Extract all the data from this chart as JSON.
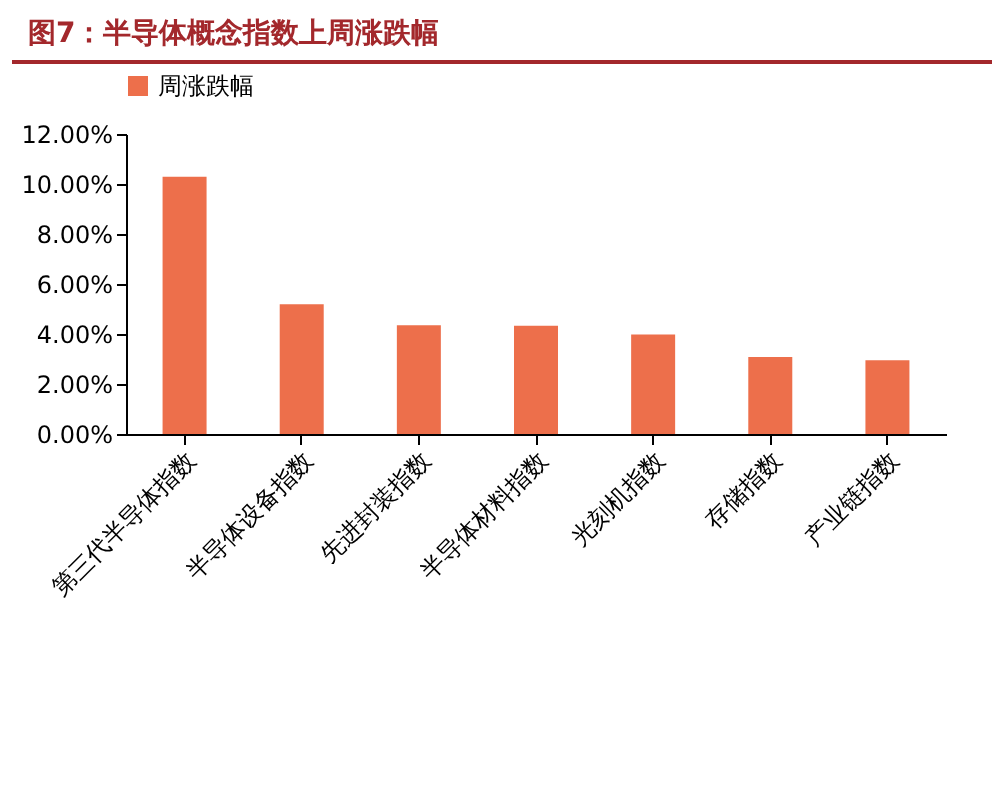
{
  "chart_data": {
    "type": "bar",
    "title": "图7：半导体概念指数上周涨跌幅",
    "categories": [
      "第三代半导体指数",
      "半导体设备指数",
      "先进封装指数",
      "半导体材料指数",
      "光刻机指数",
      "存储指数",
      "产业链指数"
    ],
    "series": [
      {
        "name": "周涨跌幅",
        "color": "#ed6f4b",
        "values": [
          10.29,
          5.19,
          4.35,
          4.33,
          3.98,
          3.08,
          2.95
        ]
      }
    ],
    "ylim": [
      0,
      12
    ],
    "yticks": [
      {
        "value": 0,
        "label": "0.00%"
      },
      {
        "value": 2,
        "label": "2.00%"
      },
      {
        "value": 4,
        "label": "4.00%"
      },
      {
        "value": 6,
        "label": "6.00%"
      },
      {
        "value": 8,
        "label": "8.00%"
      },
      {
        "value": 10,
        "label": "10.00%"
      },
      {
        "value": 12,
        "label": "12.00%"
      }
    ],
    "grid": false,
    "legend": "top"
  }
}
